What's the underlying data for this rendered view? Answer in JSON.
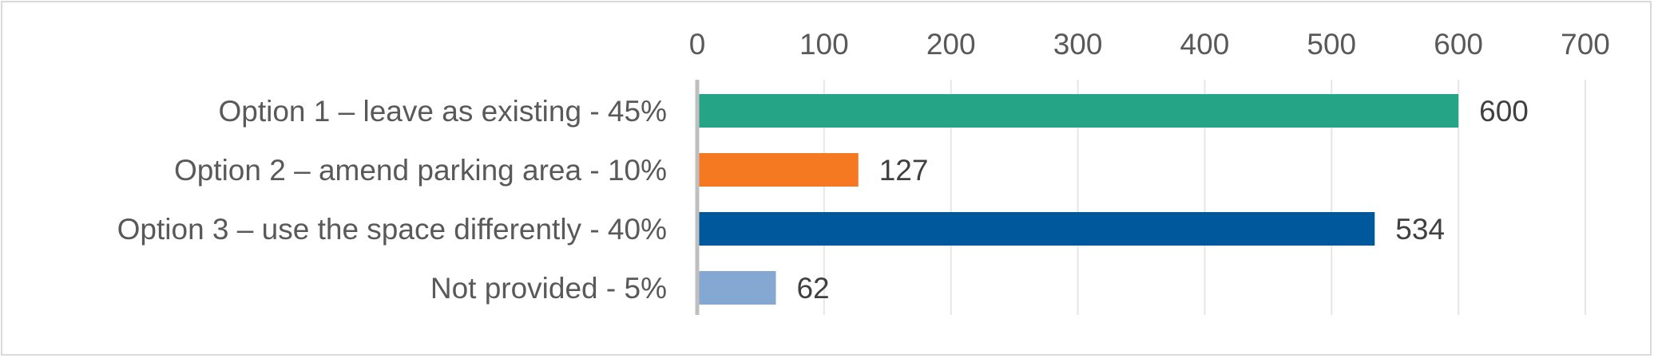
{
  "chart_data": {
    "type": "bar",
    "orientation": "horizontal",
    "title": "",
    "xlabel": "",
    "ylabel": "",
    "xlim": [
      0,
      700
    ],
    "x_ticks": [
      0,
      100,
      200,
      300,
      400,
      500,
      600,
      700
    ],
    "x_axis_position": "top",
    "grid": true,
    "legend": "none",
    "categories": [
      "Option 1 – leave as existing - 45%",
      "Option 2 – amend parking area - 10%",
      "Option 3 – use the space differently - 40%",
      "Not provided - 5%"
    ],
    "values": [
      600,
      127,
      534,
      62
    ],
    "data_labels": [
      "600",
      "127",
      "534",
      "62"
    ],
    "colors": [
      "#26a586",
      "#f47920",
      "#00589c",
      "#85a8d2"
    ]
  },
  "style": {
    "gridline_color": "#e6e6e6",
    "axis_line_color": "#bfbfbf",
    "border_color": "#d9d9d9"
  }
}
